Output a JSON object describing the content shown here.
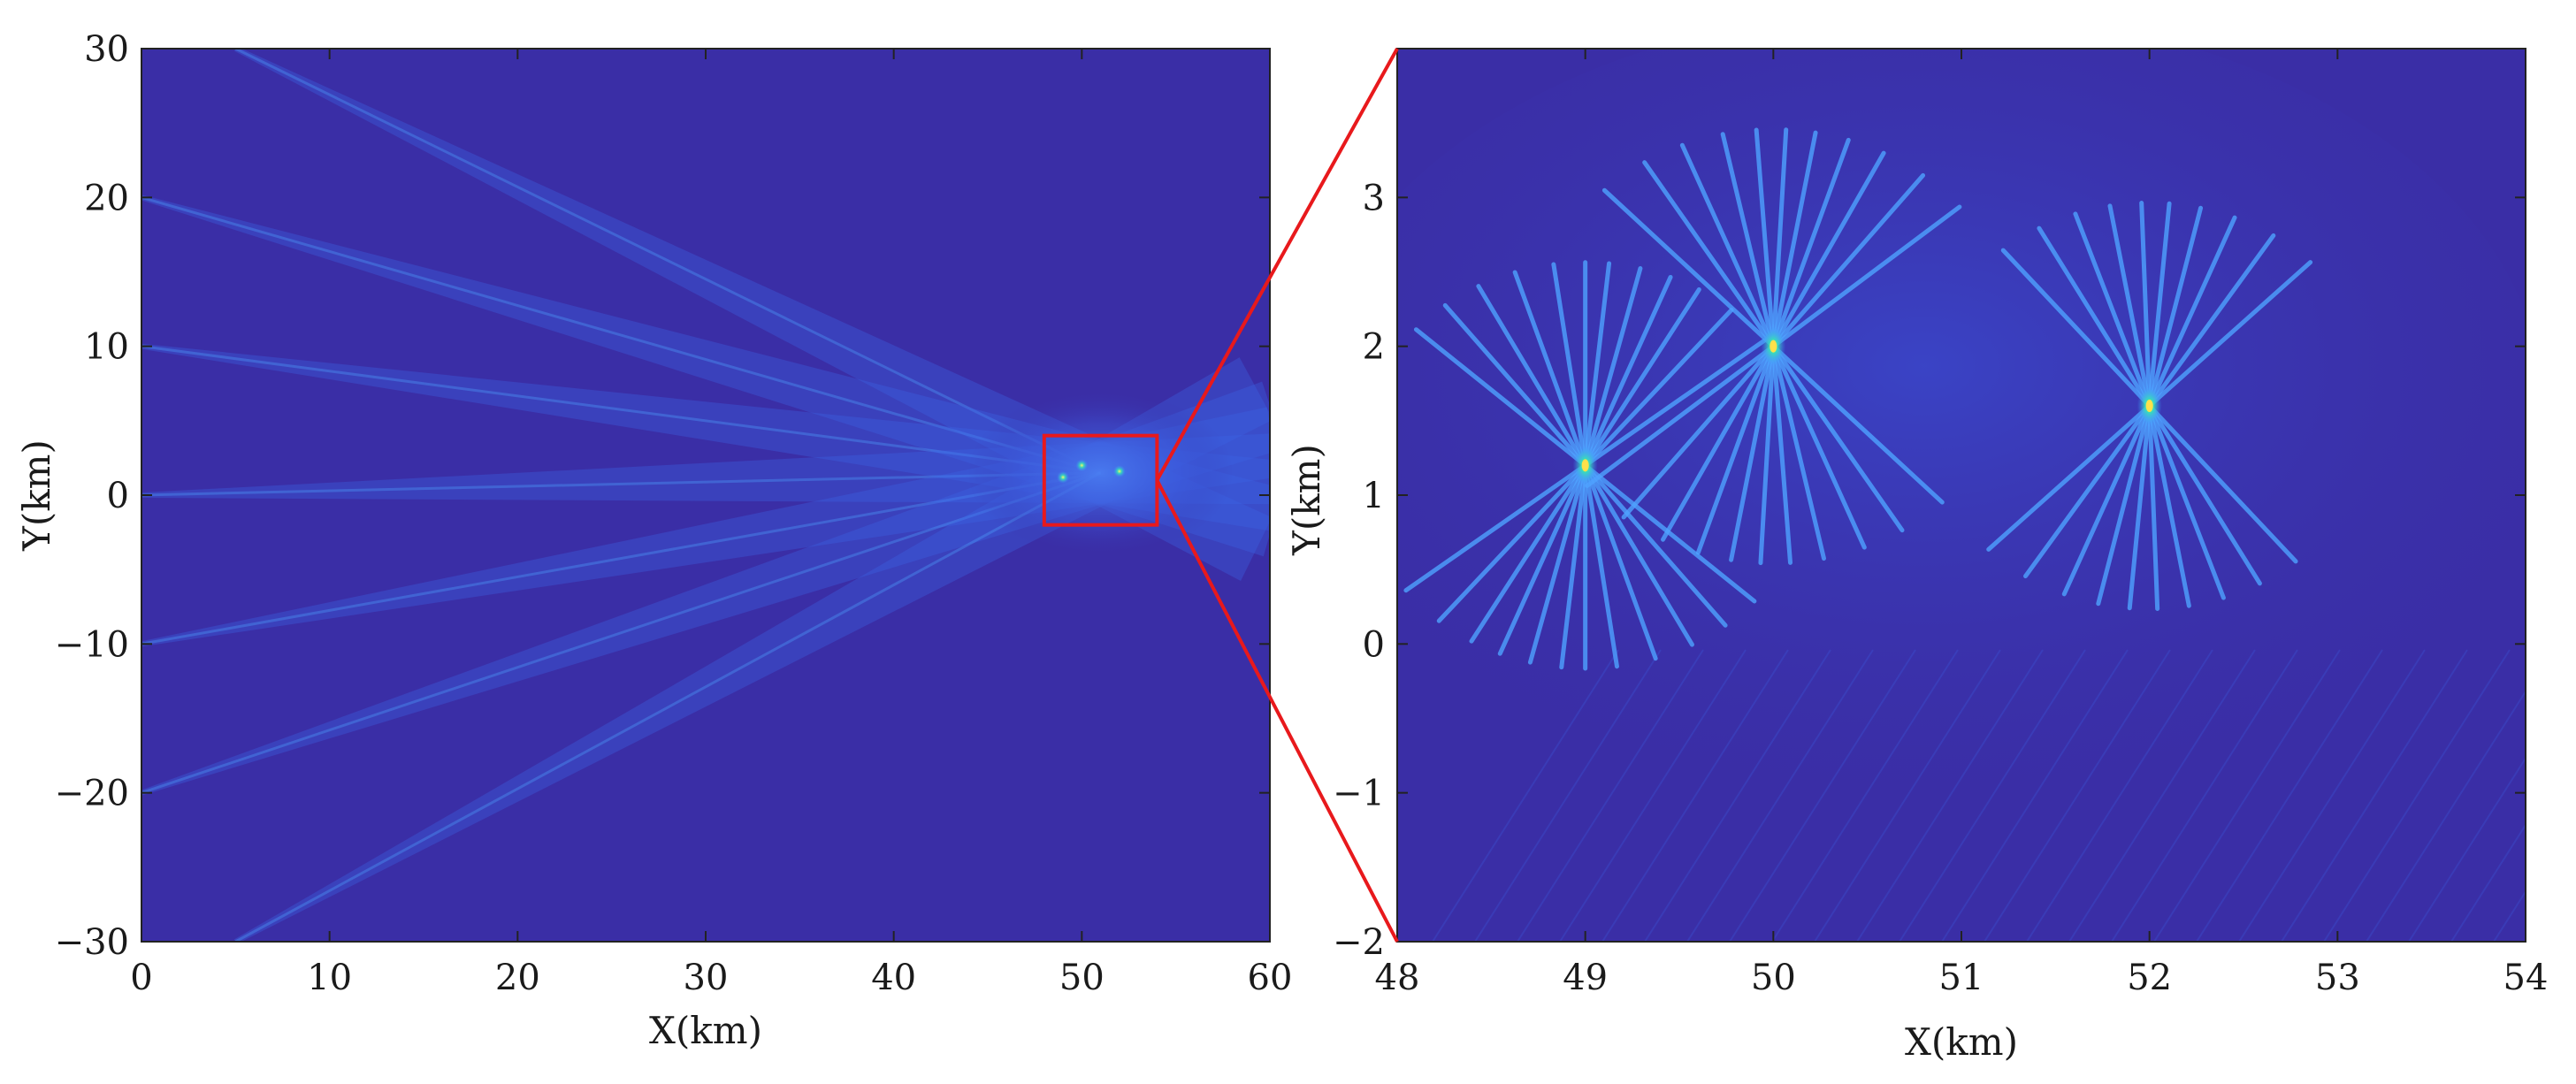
{
  "colors": {
    "background": "#3a2ea6",
    "beam": "#3b63e6",
    "beam_bright": "#4fa3ff",
    "peak": "#ffe14a",
    "peak_mid": "#2de0c0",
    "zoom_box": "#e8191c",
    "axis": "#222222"
  },
  "chart_data": [
    {
      "type": "heatmap",
      "panel": "overview",
      "xlabel": "X(km)",
      "ylabel": "Y(km)",
      "xlim": [
        0,
        60
      ],
      "ylim": [
        -30,
        30
      ],
      "xticks": [
        0,
        10,
        20,
        30,
        40,
        50,
        60
      ],
      "yticks": [
        30,
        20,
        10,
        0,
        -10,
        -20,
        -30
      ],
      "xtick_labels": [
        "0",
        "10",
        "20",
        "30",
        "40",
        "50",
        "60"
      ],
      "ytick_labels": [
        "30",
        "20",
        "10",
        "0",
        "−10",
        "−20",
        "−30"
      ],
      "beam_origins_y": [
        30,
        20,
        10,
        0,
        -10,
        -20,
        -30
      ],
      "beam_focus": [
        51,
        1.5
      ],
      "zoom_region": {
        "x": [
          48,
          54
        ],
        "y": [
          -2,
          4
        ]
      },
      "grid": false
    },
    {
      "type": "heatmap",
      "panel": "zoom",
      "xlabel": "X(km)",
      "ylabel": "Y(km)",
      "xlim": [
        48,
        54
      ],
      "ylim": [
        -2,
        4
      ],
      "xticks": [
        48,
        49,
        50,
        51,
        52,
        53,
        54
      ],
      "yticks": [
        3,
        2,
        1,
        0,
        -1,
        -2
      ],
      "xtick_labels": [
        "48",
        "49",
        "50",
        "51",
        "52",
        "53",
        "54"
      ],
      "ytick_labels": [
        "3",
        "2",
        "1",
        "0",
        "−1",
        "−2"
      ],
      "targets": [
        {
          "x": 49,
          "y": 1.2
        },
        {
          "x": 50,
          "y": 2.0
        },
        {
          "x": 52,
          "y": 1.6
        }
      ],
      "grid": false
    }
  ]
}
